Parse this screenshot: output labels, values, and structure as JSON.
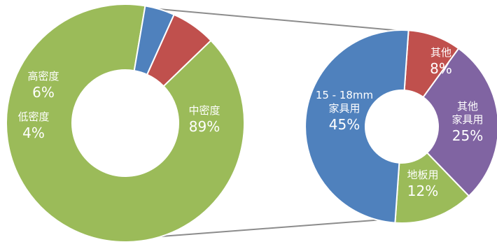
{
  "chart_data": [
    {
      "type": "pie",
      "donut": true,
      "title": "",
      "slices": [
        {
          "label": "中密度",
          "value": 89,
          "pct_label": "89%",
          "color": "#9BBB59"
        },
        {
          "label": "低密度",
          "value": 4,
          "pct_label": "4%",
          "color": "#4F81BD"
        },
        {
          "label": "高密度",
          "value": 6,
          "pct_label": "6%",
          "color": "#C0504D"
        }
      ]
    },
    {
      "type": "pie",
      "donut": true,
      "title": "",
      "slices": [
        {
          "label": "其他",
          "value": 8,
          "pct_label": "8%",
          "color": "#C0504D"
        },
        {
          "label": "其他\n家具用",
          "value": 25,
          "pct_label": "25%",
          "color": "#8064A2"
        },
        {
          "label": "地板用",
          "value": 12,
          "pct_label": "12%",
          "color": "#9BBB59"
        },
        {
          "label": "15 - 18mm\n家具用",
          "value": 45,
          "pct_label": "45%",
          "color": "#4F81BD"
        }
      ]
    }
  ]
}
